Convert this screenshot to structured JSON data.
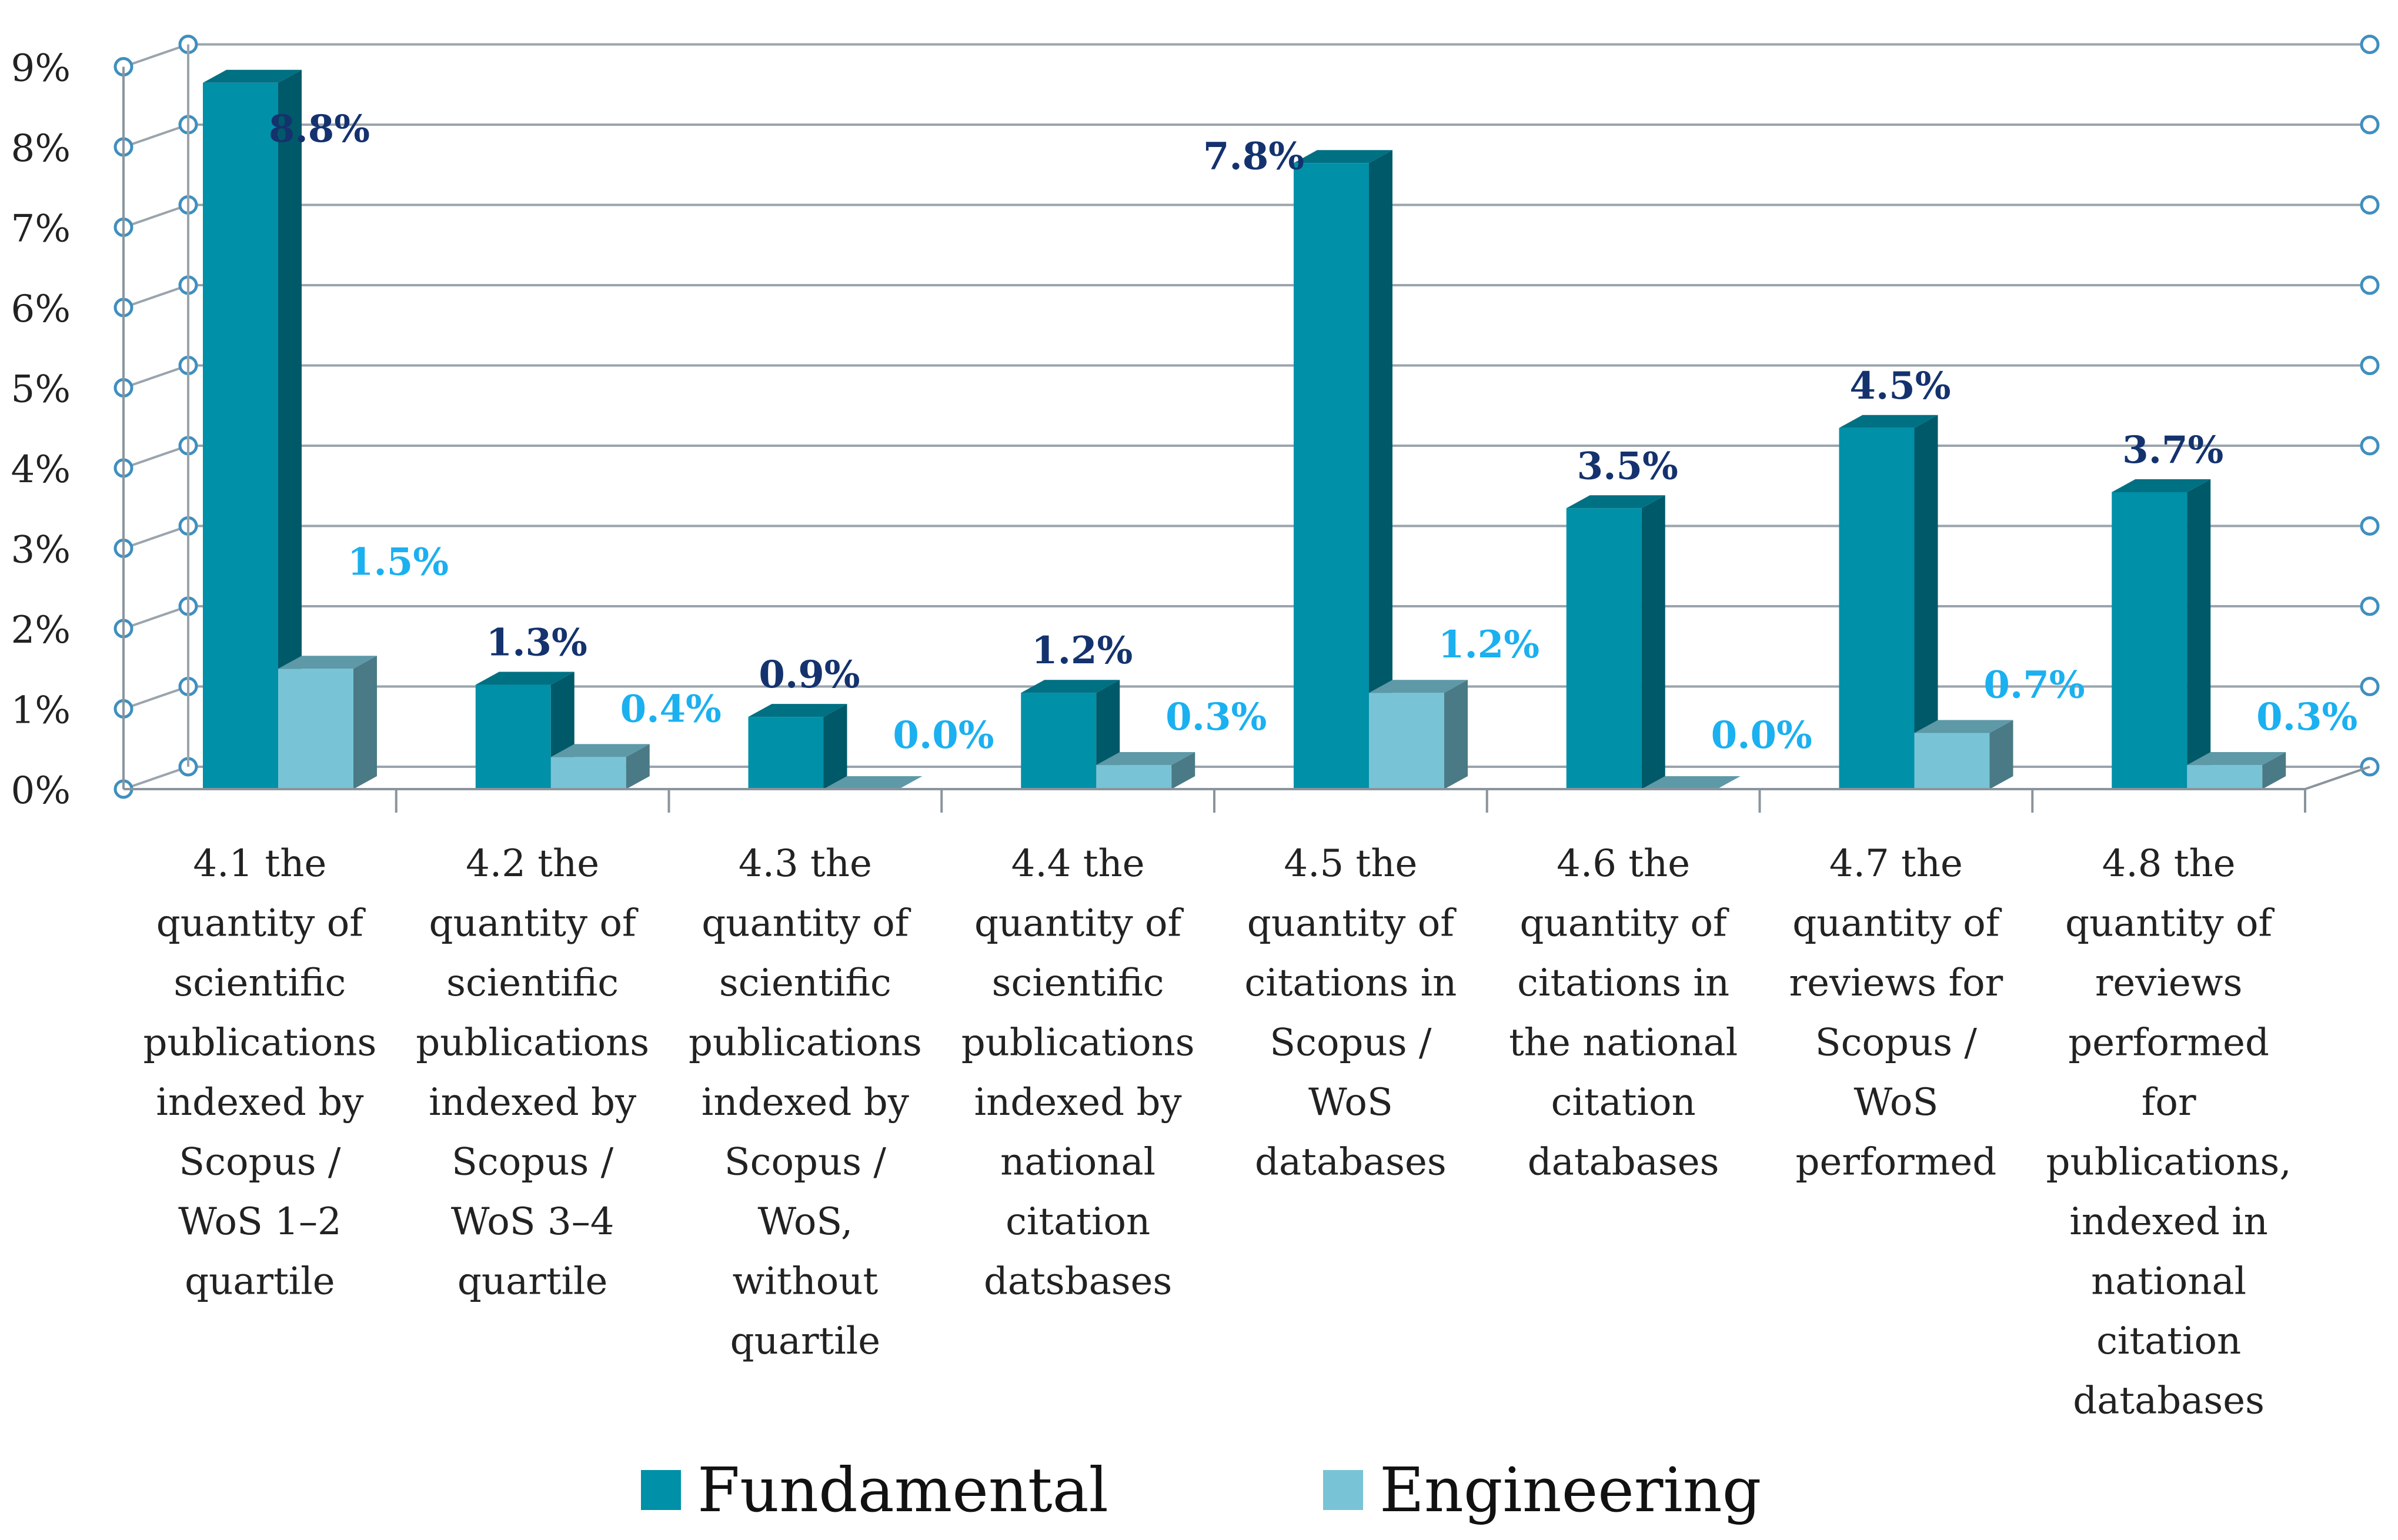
{
  "chart_data": {
    "type": "bar",
    "title": "",
    "xlabel": "",
    "ylabel": "",
    "ylim": [
      0,
      9
    ],
    "y_ticks": [
      "0%",
      "1%",
      "2%",
      "3%",
      "4%",
      "5%",
      "6%",
      "7%",
      "8%",
      "9%"
    ],
    "grid": true,
    "legend_position": "bottom",
    "categories": [
      [
        "4.1 the",
        "quantity of",
        "scientific",
        "publications",
        "indexed by",
        "Scopus /",
        "WoS 1–2",
        "quartile"
      ],
      [
        "4.2 the",
        "quantity of",
        "scientific",
        "publications",
        "indexed by",
        "Scopus /",
        "WoS 3–4",
        "quartile"
      ],
      [
        "4.3 the",
        "quantity of",
        "scientific",
        "publications",
        "indexed by",
        "Scopus /",
        "WoS,",
        "without",
        "quartile"
      ],
      [
        "4.4 the",
        "quantity of",
        "scientific",
        "publications",
        "indexed by",
        "national",
        "citation",
        "datsbases"
      ],
      [
        "4.5 the",
        "quantity of",
        "citations in",
        "Scopus /",
        "WoS",
        "databases"
      ],
      [
        "4.6 the",
        "quantity of",
        "citations in",
        "the national",
        "citation",
        "databases"
      ],
      [
        "4.7 the",
        "quantity of",
        "reviews for",
        "Scopus /",
        "WoS",
        "performed"
      ],
      [
        "4.8 the",
        "quantity of",
        "reviews",
        "performed",
        "for",
        "publications,",
        "indexed in",
        "national",
        "citation",
        "databases"
      ]
    ],
    "series": [
      {
        "name": "Fundamental",
        "values": [
          8.8,
          1.3,
          0.9,
          1.2,
          7.8,
          3.5,
          4.5,
          3.7
        ],
        "labels": [
          "8.8%",
          "1.3%",
          "0.9%",
          "1.2%",
          "7.8%",
          "3.5%",
          "4.5%",
          "3.7%"
        ],
        "color": "#0090A8",
        "label_color": "#14326E"
      },
      {
        "name": "Engineering",
        "values": [
          1.5,
          0.4,
          0.0,
          0.3,
          1.2,
          0.0,
          0.7,
          0.3
        ],
        "labels": [
          "1.5%",
          "0.4%",
          "0.0%",
          "0.3%",
          "1.2%",
          "0.0%",
          "0.7%",
          "0.3%"
        ],
        "color": "#78C4D6",
        "label_color": "#1BB0F0"
      }
    ]
  }
}
